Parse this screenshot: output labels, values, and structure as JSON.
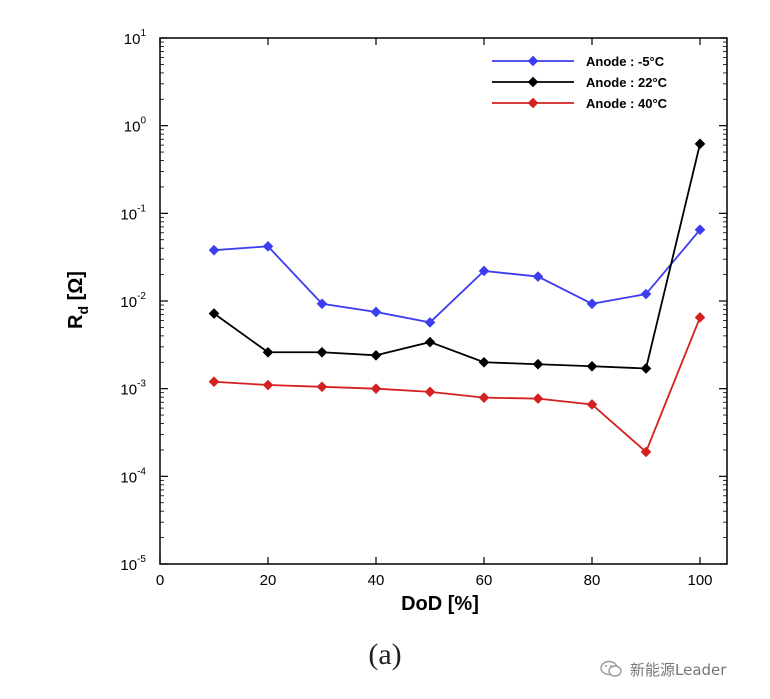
{
  "chart_data": {
    "type": "line",
    "title": "",
    "xlabel": "DoD [%]",
    "ylabel_main": "R",
    "ylabel_sub": "d",
    "ylabel_unit": "[Ω]",
    "xlim": [
      0,
      105
    ],
    "ylim_log10": [
      -5,
      1
    ],
    "y_scale": "log",
    "x_ticks": [
      0,
      20,
      40,
      60,
      80,
      100
    ],
    "y_tick_exponents": [
      1,
      0,
      -1,
      -2,
      -3,
      -4,
      -5
    ],
    "legend_position": "top-right",
    "x": [
      10,
      20,
      30,
      40,
      50,
      60,
      70,
      80,
      90,
      100
    ],
    "series": [
      {
        "name": "Anode : -5°C",
        "color": "#3c3cf0",
        "values": [
          0.038,
          0.042,
          0.0093,
          0.0075,
          0.0057,
          0.022,
          0.019,
          0.0093,
          0.012,
          0.065
        ]
      },
      {
        "name": "Anode : 22°C",
        "color": "#000000",
        "values": [
          0.0072,
          0.0026,
          0.0026,
          0.0024,
          0.0034,
          0.002,
          0.0019,
          0.0018,
          0.0017,
          0.62
        ]
      },
      {
        "name": "Anode : 40°C",
        "color": "#d42020",
        "values": [
          0.0012,
          0.0011,
          0.00105,
          0.001,
          0.00092,
          0.00079,
          0.00077,
          0.00066,
          0.00019,
          0.0065
        ]
      }
    ]
  },
  "caption": "(a)",
  "watermark": {
    "icon": "wechat-icon",
    "text": "新能源Leader"
  }
}
